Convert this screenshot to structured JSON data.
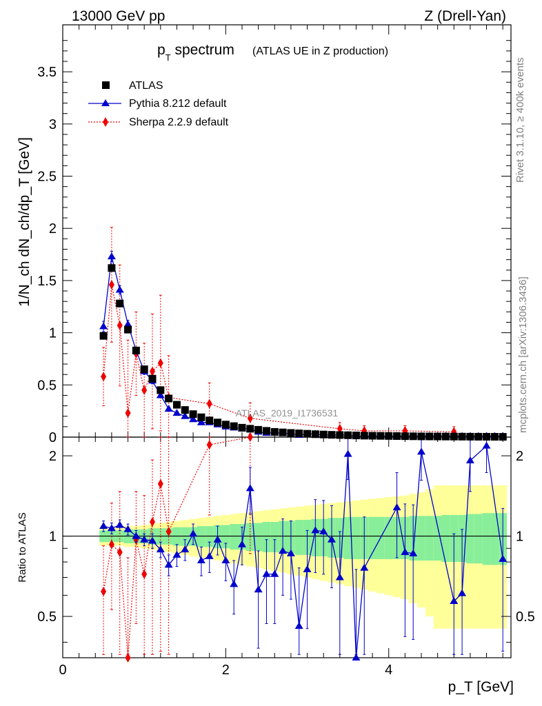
{
  "header": {
    "energy": "13000 GeV pp",
    "process": "Z (Drell-Yan)",
    "plot_title_main": "p",
    "plot_title_sub": "T",
    "plot_title_rest": " spectrum",
    "plot_title_note": "(ATLAS UE in Z production)",
    "analysis_label": "ATLAS_2019_I1736531",
    "side_top": "Rivet 3.1.10, ≥ 400k events",
    "side_bottom": "mcplots.cern.ch [arXiv:1306.3436]"
  },
  "axes": {
    "ylabel_main": "1/N_ch dN_ch/dp_T [GeV]",
    "ylabel_ratio": "Ratio to ATLAS",
    "xlabel": "p_T [GeV]",
    "x_ticks": [
      "0",
      "2",
      "4"
    ],
    "y_ticks_main": [
      "0",
      "0.5",
      "1",
      "1.5",
      "2",
      "2.5",
      "3",
      "3.5"
    ],
    "y_ticks_ratio": [
      "0.5",
      "1",
      "2"
    ]
  },
  "legend": {
    "atlas": "ATLAS",
    "pythia": "Pythia 8.212 default",
    "sherpa": "Sherpa 2.2.9 default"
  },
  "colors": {
    "data": "#000000",
    "pythia": "#0000cc",
    "sherpa": "#ee0000",
    "band_inner": "#88ee99",
    "band_outer": "#ffff99"
  },
  "chart_data": {
    "type": "line",
    "title": "p_T spectrum (ATLAS UE in Z production)",
    "xlabel": "p_T [GeV]",
    "ylabel": "1/N_ch dN_ch/dp_T [GeV]",
    "xlim": [
      0,
      5.5
    ],
    "ylim": [
      0,
      3.95
    ],
    "ratio_ylim": [
      0.35,
      2.35
    ],
    "x": [
      0.5,
      0.6,
      0.7,
      0.8,
      0.9,
      1.0,
      1.1,
      1.2,
      1.3,
      1.4,
      1.5,
      1.6,
      1.7,
      1.8,
      1.9,
      2.0,
      2.1,
      2.2,
      2.3,
      2.4,
      2.5,
      2.6,
      2.7,
      2.8,
      2.9,
      3.0,
      3.1,
      3.2,
      3.3,
      3.4,
      3.5,
      3.6,
      3.7,
      3.8,
      3.9,
      4.0,
      4.1,
      4.2,
      4.3,
      4.4,
      4.5,
      4.6,
      4.7,
      4.8,
      4.9,
      5.0,
      5.1,
      5.2,
      5.3,
      5.4
    ],
    "atlas": [
      0.97,
      1.62,
      1.28,
      1.03,
      0.83,
      0.65,
      0.56,
      0.45,
      0.37,
      0.31,
      0.26,
      0.22,
      0.19,
      0.16,
      0.14,
      0.12,
      0.105,
      0.09,
      0.08,
      0.07,
      0.06,
      0.05,
      0.045,
      0.04,
      0.036,
      0.032,
      0.028,
      0.025,
      0.022,
      0.02,
      0.018,
      0.016,
      0.014,
      0.013,
      0.012,
      0.011,
      0.01,
      0.009,
      0.008,
      0.007,
      0.0065,
      0.006,
      0.0055,
      0.005,
      0.0045,
      0.004,
      0.0037,
      0.0034,
      0.0031,
      0.0028
    ],
    "pythia": [
      1.06,
      1.73,
      1.41,
      1.08,
      0.83,
      0.63,
      0.54,
      0.4,
      0.27,
      0.23,
      0.2,
      0.17,
      0.14,
      0.14,
      0.12,
      0.1,
      0.09,
      0.08,
      0.08,
      0.05,
      0.04,
      0.04,
      0.04,
      0.03,
      0.02,
      0.03,
      0.03,
      0.02,
      0.02,
      0.02,
      0.02,
      0.01,
      0.01,
      0.01,
      0.01,
      0.01,
      0.01,
      0.01,
      0.01,
      0.01,
      0.01,
      0.01,
      0.01,
      0.01,
      0.01,
      0.01,
      0.01,
      0.01,
      0.01,
      0.01
    ],
    "pythia_err": [
      0.05,
      0.05,
      0.04,
      0.04,
      0.03,
      0.03,
      0.03,
      0.02,
      0.02,
      0.02,
      0.02,
      0.02,
      0.02,
      0.02,
      0.02,
      0.02,
      0.02,
      0.02,
      0.02,
      0.01,
      0.01,
      0.01,
      0.01,
      0.01,
      0.01,
      0.01,
      0.01,
      0.01,
      0.01,
      0.01,
      0.01,
      0.01,
      0.01,
      0.01,
      0.01,
      0.01,
      0.01,
      0.01,
      0.01,
      0.01,
      0.01,
      0.01,
      0.01,
      0.01,
      0.01,
      0.01,
      0.01,
      0.01,
      0.01,
      0.01
    ],
    "pythia_ratio": [
      1.09,
      1.07,
      1.1,
      1.06,
      1.0,
      0.97,
      0.96,
      0.89,
      0.78,
      0.85,
      0.89,
      1.02,
      0.81,
      0.84,
      0.97,
      0.81,
      0.66,
      0.93,
      1.51,
      0.63,
      0.72,
      0.72,
      0.88,
      0.86,
      0.46,
      0.75,
      1.05,
      1.04,
      0.97,
      0.7,
      2.03,
      0.35,
      0.76,
      null,
      null,
      null,
      1.28,
      0.87,
      0.86,
      2.07,
      null,
      null,
      null,
      0.57,
      0.61,
      1.92,
      null,
      2.18,
      null,
      0.82
    ],
    "pythia_ratio_err": [
      0.05,
      0.05,
      0.05,
      0.05,
      0.05,
      0.05,
      0.06,
      0.06,
      0.07,
      0.08,
      0.08,
      0.09,
      0.1,
      0.11,
      0.12,
      0.13,
      0.15,
      0.15,
      0.3,
      0.25,
      0.25,
      0.25,
      0.28,
      0.28,
      0.3,
      0.3,
      0.32,
      0.32,
      0.33,
      0.34,
      0.4,
      0.4,
      0.42,
      0,
      0,
      0,
      0.45,
      0.45,
      0.45,
      0.45,
      0,
      0,
      0,
      0.45,
      0.45,
      0.45,
      0,
      0.45,
      0,
      0.45
    ],
    "sherpa_x": [
      0.5,
      0.6,
      0.7,
      0.8,
      0.9,
      1.0,
      1.1,
      1.2,
      1.3,
      1.8,
      2.3,
      3.4,
      3.7,
      4.2,
      4.8
    ],
    "sherpa": [
      0.58,
      1.46,
      1.07,
      0.23,
      0.8,
      0.45,
      0.63,
      0.71,
      0.38,
      0.32,
      0.18,
      0.08,
      0.06,
      0.06,
      0.05
    ],
    "sherpa_err": [
      0.28,
      0.55,
      0.58,
      0.7,
      0.4,
      0.45,
      0.55,
      0.65,
      0.4,
      0.2,
      0.15,
      0.06,
      0.05,
      0.05,
      0.05
    ],
    "sherpa_ratio": [
      0.62,
      0.93,
      0.87,
      0.23,
      0.97,
      0.72,
      1.13,
      1.57,
      1.04,
      2.2,
      2.36,
      null,
      null,
      null,
      null
    ],
    "sherpa_ratio_err": [
      0.3,
      0.4,
      0.6,
      0.6,
      0.5,
      0.7,
      0.8,
      1.2,
      1.5,
      1.0,
      1.5,
      0,
      0,
      0,
      0
    ],
    "band_inner": [
      0.05,
      0.05,
      0.05,
      0.06,
      0.06,
      0.06,
      0.07,
      0.07,
      0.07,
      0.08,
      0.08,
      0.08,
      0.09,
      0.09,
      0.1,
      0.1,
      0.11,
      0.11,
      0.12,
      0.12,
      0.13,
      0.13,
      0.14,
      0.14,
      0.15,
      0.15,
      0.16,
      0.16,
      0.17,
      0.17,
      0.18,
      0.18,
      0.18,
      0.18,
      0.18,
      0.18,
      0.18,
      0.18,
      0.19,
      0.19,
      0.19,
      0.19,
      0.2,
      0.2,
      0.2,
      0.21,
      0.21,
      0.22,
      0.22,
      0.22
    ],
    "band_outer": [
      0.08,
      0.08,
      0.08,
      0.09,
      0.09,
      0.1,
      0.11,
      0.12,
      0.13,
      0.14,
      0.15,
      0.16,
      0.17,
      0.18,
      0.19,
      0.2,
      0.21,
      0.22,
      0.23,
      0.24,
      0.25,
      0.26,
      0.27,
      0.28,
      0.29,
      0.3,
      0.31,
      0.32,
      0.33,
      0.34,
      0.35,
      0.36,
      0.37,
      0.38,
      0.39,
      0.4,
      0.41,
      0.42,
      0.44,
      0.46,
      0.5,
      0.55,
      0.55,
      0.55,
      0.55,
      0.55,
      0.55,
      0.55,
      0.55,
      0.55
    ]
  }
}
